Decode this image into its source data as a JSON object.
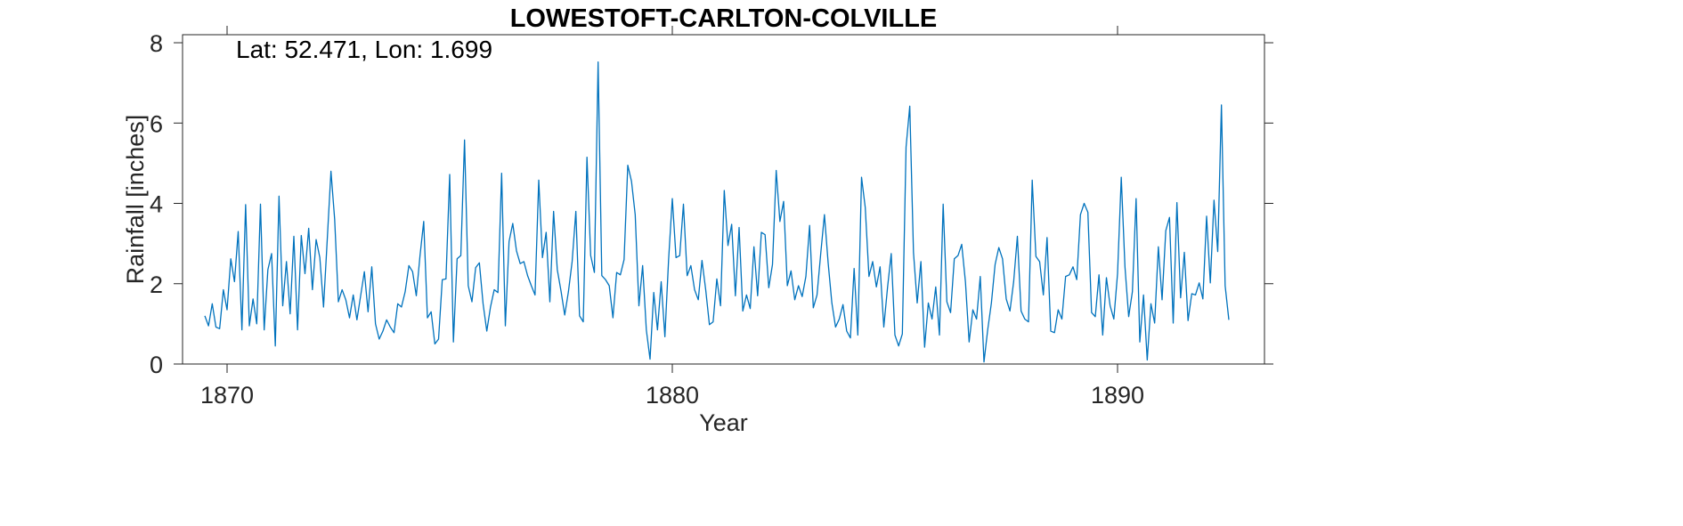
{
  "chart_data": {
    "type": "line",
    "title": "LOWESTOFT-CARLTON-COLVILLE",
    "annotation": "Lat: 52.471, Lon: 1.699",
    "xlabel": "Year",
    "ylabel": "Rainfall [inches]",
    "xlim": [
      1869,
      1893.3
    ],
    "ylim": [
      0,
      8.2
    ],
    "xticks": [
      1870,
      1880,
      1890
    ],
    "yticks": [
      0,
      2,
      4,
      6,
      8
    ],
    "line_color": "#0072BD",
    "series": [
      {
        "x_start": 1869.5,
        "x_step": 0.0833333,
        "values": [
          1.2,
          0.95,
          1.5,
          0.92,
          0.88,
          1.85,
          1.35,
          2.62,
          2.05,
          3.3,
          0.85,
          3.97,
          0.95,
          1.62,
          1.0,
          3.98,
          0.85,
          2.35,
          2.75,
          0.45,
          4.18,
          1.45,
          2.55,
          1.25,
          3.18,
          0.85,
          3.2,
          2.25,
          3.38,
          1.85,
          3.1,
          2.65,
          1.42,
          3.1,
          4.8,
          3.6,
          1.55,
          1.85,
          1.6,
          1.15,
          1.72,
          1.1,
          1.7,
          2.3,
          1.3,
          2.42,
          1.0,
          0.62,
          0.82,
          1.1,
          0.92,
          0.78,
          1.5,
          1.42,
          1.8,
          2.45,
          2.3,
          1.7,
          2.7,
          3.55,
          1.15,
          1.3,
          0.5,
          0.62,
          2.1,
          2.12,
          4.72,
          0.55,
          2.62,
          2.7,
          5.58,
          1.95,
          1.55,
          2.4,
          2.52,
          1.5,
          0.82,
          1.42,
          1.85,
          1.78,
          4.75,
          0.95,
          3.05,
          3.5,
          2.82,
          2.5,
          2.55,
          2.2,
          1.95,
          1.72,
          4.58,
          2.65,
          3.28,
          1.55,
          3.8,
          2.35,
          1.82,
          1.22,
          1.8,
          2.55,
          3.8,
          1.2,
          1.05,
          5.15,
          2.7,
          2.28,
          7.52,
          2.2,
          2.1,
          1.95,
          1.15,
          2.28,
          2.22,
          2.6,
          4.95,
          4.55,
          3.72,
          1.45,
          2.45,
          0.85,
          0.12,
          1.78,
          0.85,
          2.05,
          0.68,
          2.6,
          4.12,
          2.65,
          2.7,
          3.98,
          2.2,
          2.45,
          1.85,
          1.6,
          2.58,
          1.85,
          0.98,
          1.05,
          2.12,
          1.45,
          4.32,
          2.95,
          3.48,
          1.7,
          3.4,
          1.32,
          1.72,
          1.38,
          2.92,
          1.7,
          3.28,
          3.22,
          1.9,
          2.48,
          4.82,
          3.55,
          4.05,
          1.95,
          2.32,
          1.6,
          1.95,
          1.68,
          2.18,
          3.45,
          1.4,
          1.72,
          2.75,
          3.72,
          2.52,
          1.52,
          0.92,
          1.12,
          1.48,
          0.82,
          0.65,
          2.38,
          0.72,
          4.65,
          3.9,
          2.18,
          2.55,
          1.92,
          2.42,
          0.92,
          1.9,
          2.75,
          0.72,
          0.45,
          0.75,
          5.4,
          6.42,
          2.78,
          1.52,
          2.55,
          0.42,
          1.52,
          1.12,
          1.92,
          0.72,
          3.98,
          1.55,
          1.28,
          2.62,
          2.7,
          2.98,
          2.05,
          0.55,
          1.35,
          1.12,
          2.18,
          0.05,
          0.85,
          1.52,
          2.48,
          2.9,
          2.62,
          1.62,
          1.32,
          2.05,
          3.18,
          1.32,
          1.12,
          1.05,
          4.58,
          2.68,
          2.55,
          1.72,
          3.15,
          0.82,
          0.78,
          1.35,
          1.12,
          2.18,
          2.22,
          2.42,
          2.1,
          3.72,
          4.0,
          3.78,
          1.28,
          1.18,
          2.22,
          0.72,
          2.15,
          1.45,
          1.12,
          2.25,
          4.65,
          2.42,
          1.18,
          1.8,
          4.12,
          0.55,
          1.72,
          0.1,
          1.5,
          1.02,
          2.92,
          1.6,
          3.32,
          3.65,
          1.02,
          4.02,
          1.65,
          2.78,
          1.08,
          1.75,
          1.72,
          2.02,
          1.62,
          3.68,
          2.02,
          4.08,
          2.8,
          6.45,
          1.95,
          1.1
        ]
      }
    ]
  }
}
